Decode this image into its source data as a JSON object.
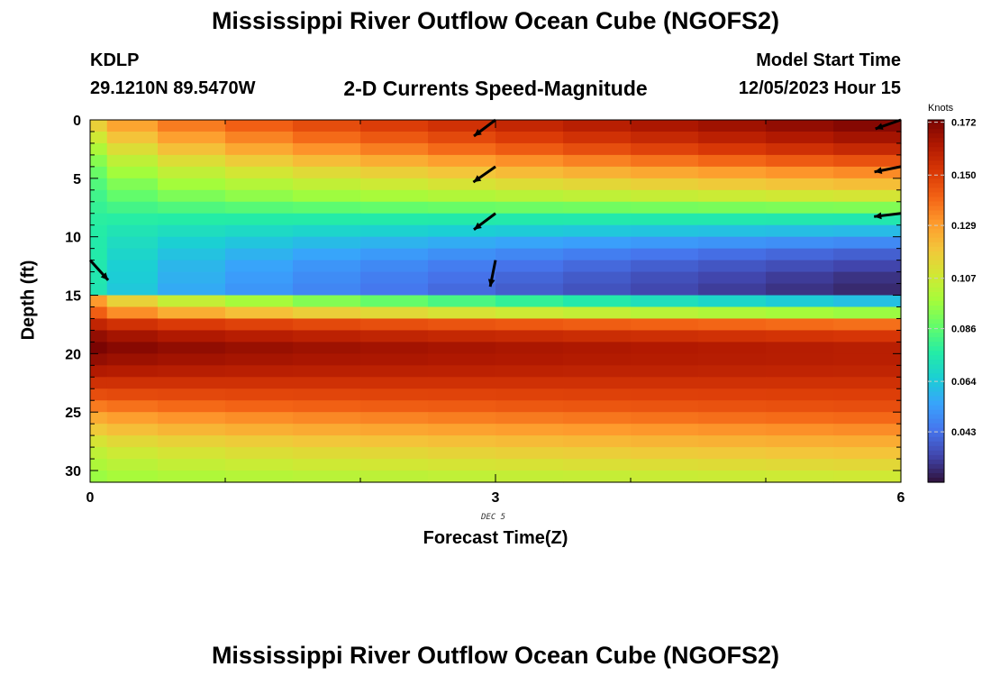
{
  "page": {
    "title": "Mississippi River Outflow Ocean Cube (NGOFS2)",
    "footer_title": "Mississippi River Outflow Ocean Cube (NGOFS2)",
    "station": "KDLP",
    "coords": "29.1210N  89.5470W",
    "model_start_label": "Model Start Time",
    "model_start_value": "12/05/2023 Hour 15",
    "date_annotation": "DEC 5"
  },
  "chart_data": {
    "type": "heatmap",
    "title": "2-D Currents Speed-Magnitude",
    "xlabel": "Forecast Time(Z)",
    "ylabel": "Depth (ft)",
    "xlim": [
      0,
      6
    ],
    "ylim": [
      31,
      0
    ],
    "y_inverted": true,
    "xticks": [
      0,
      3,
      6
    ],
    "yticks": [
      0,
      5,
      10,
      15,
      20,
      25,
      30
    ],
    "colorbar": {
      "label": "Knots",
      "min": 0.022,
      "max": 0.173,
      "ticks": [
        0.172,
        0.15,
        0.129,
        0.107,
        0.086,
        0.064,
        0.043
      ],
      "tick_labels": [
        "0.172",
        "0.150",
        "0.129",
        "0.107",
        "0.086",
        "0.064",
        "0.043"
      ],
      "colormap": [
        "#30123b",
        "#4145ab",
        "#4675ed",
        "#39a2fc",
        "#1bcfd4",
        "#24eca6",
        "#61fc6c",
        "#a4fc3b",
        "#d1e834",
        "#f3c63a",
        "#fe9b2d",
        "#f36315",
        "#d93806",
        "#b11901",
        "#7a0402"
      ]
    },
    "x_columns": [
      0.0,
      0.25,
      0.75,
      1.25,
      1.75,
      2.25,
      2.75,
      3.25,
      3.75,
      4.25,
      4.75,
      5.25,
      5.75
    ],
    "depth_rows_ft": [
      0.5,
      1.5,
      2.5,
      3.5,
      4.5,
      5.5,
      6.5,
      7.5,
      8.5,
      9.5,
      10.5,
      11.5,
      12.5,
      13.5,
      14.5,
      15.5,
      16.5,
      17.5,
      18.5,
      19.5,
      20.5,
      21.5,
      22.5,
      23.5,
      24.5,
      25.5,
      26.5,
      27.5,
      28.5,
      29.5,
      30.5
    ],
    "upper_layer_profile": {
      "depth_ft": [
        0.5,
        1.5,
        2.5,
        3.5,
        4.5,
        5.5,
        6.5,
        7.5,
        8.5,
        9.5,
        10.5,
        11.5,
        12.5,
        13.5,
        14.5
      ],
      "speed_at_t0": [
        0.116,
        0.108,
        0.1,
        0.093,
        0.088,
        0.084,
        0.081,
        0.079,
        0.077,
        0.076,
        0.075,
        0.075,
        0.074,
        0.074,
        0.073
      ],
      "speed_at_t6": [
        0.172,
        0.166,
        0.158,
        0.146,
        0.134,
        0.122,
        0.11,
        0.092,
        0.074,
        0.06,
        0.048,
        0.038,
        0.032,
        0.028,
        0.026
      ]
    },
    "lower_layer_profile": {
      "depth_ft": [
        15.5,
        16.5,
        17.5,
        18.5,
        19.5,
        20.5,
        21.5,
        22.5,
        23.5,
        24.5,
        25.5,
        26.5,
        27.5,
        28.5,
        29.5,
        30.5
      ],
      "speed_at_t0": [
        0.13,
        0.142,
        0.158,
        0.168,
        0.173,
        0.168,
        0.162,
        0.154,
        0.146,
        0.136,
        0.126,
        0.118,
        0.11,
        0.104,
        0.1,
        0.096
      ],
      "speed_at_t6": [
        0.06,
        0.095,
        0.138,
        0.152,
        0.16,
        0.16,
        0.158,
        0.154,
        0.15,
        0.146,
        0.14,
        0.133,
        0.126,
        0.12,
        0.114,
        0.108
      ]
    },
    "arrows": [
      {
        "t": 0.0,
        "depth": 12.0,
        "u": 0.9,
        "v": -1.0
      },
      {
        "t": 3.0,
        "depth": 0.0,
        "u": -1.0,
        "v": -0.75
      },
      {
        "t": 3.0,
        "depth": 4.0,
        "u": -1.0,
        "v": -0.7
      },
      {
        "t": 3.0,
        "depth": 8.0,
        "u": -1.0,
        "v": -0.75
      },
      {
        "t": 3.0,
        "depth": 12.0,
        "u": -0.2,
        "v": -1.0
      },
      {
        "t": 6.0,
        "depth": 0.0,
        "u": -1.0,
        "v": -0.35
      },
      {
        "t": 6.0,
        "depth": 4.0,
        "u": -1.0,
        "v": -0.2
      },
      {
        "t": 6.0,
        "depth": 8.0,
        "u": -1.0,
        "v": -0.12
      }
    ]
  }
}
